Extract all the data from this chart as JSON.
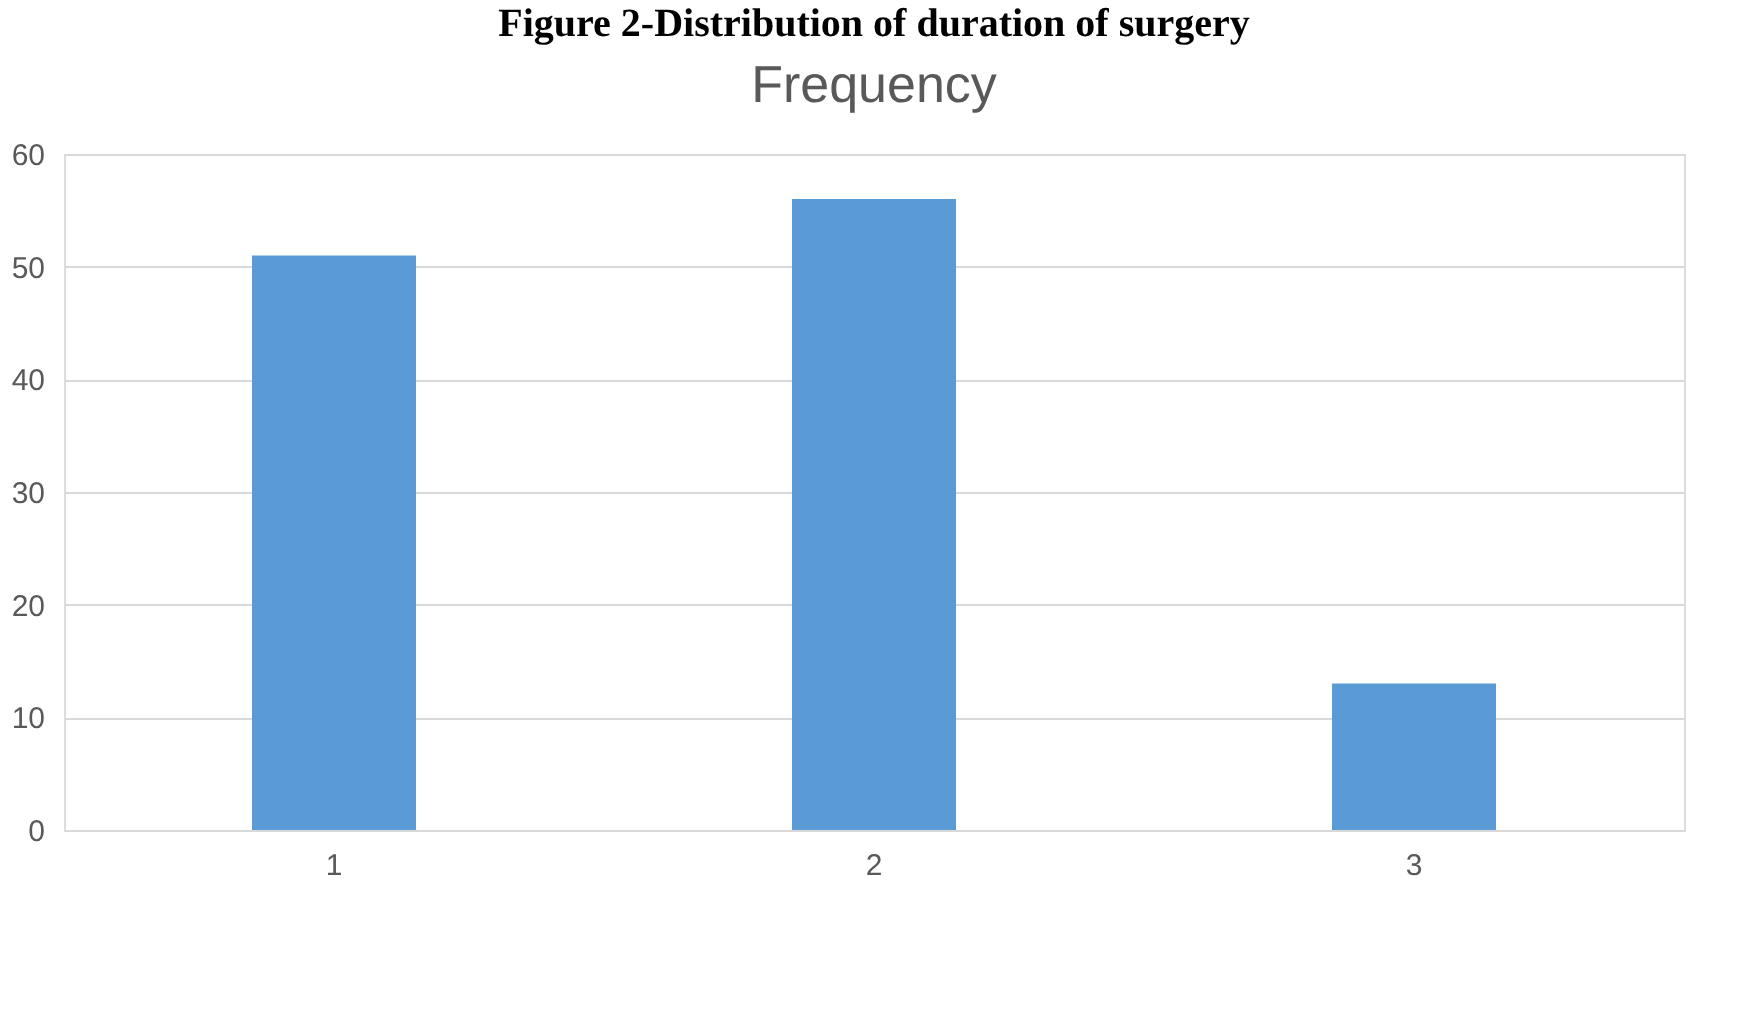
{
  "chart_data": {
    "type": "bar",
    "title": "Figure 2-Distribution of duration of surgery",
    "subtitle": "Frequency",
    "categories": [
      "1",
      "2",
      "3"
    ],
    "values": [
      51,
      56,
      13
    ],
    "color": "#5b9bd5",
    "ylim": [
      0,
      60
    ],
    "yticks": [
      0,
      10,
      20,
      30,
      40,
      50,
      60
    ],
    "grid": "y"
  }
}
